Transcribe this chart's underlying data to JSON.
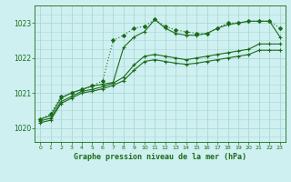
{
  "title": "Graphe pression niveau de la mer (hPa)",
  "bg_color": "#cff0f0",
  "grid_color": "#aad8d8",
  "line_color": "#1a6b1a",
  "xlim": [
    -0.5,
    23.5
  ],
  "ylim": [
    1019.6,
    1023.5
  ],
  "xticks": [
    0,
    1,
    2,
    3,
    4,
    5,
    6,
    7,
    8,
    9,
    10,
    11,
    12,
    13,
    14,
    15,
    16,
    17,
    18,
    19,
    20,
    21,
    22,
    23
  ],
  "yticks": [
    1020,
    1021,
    1022,
    1023
  ],
  "lines": [
    {
      "x": [
        0,
        1,
        2,
        3,
        4,
        5,
        6,
        7,
        8,
        9,
        10,
        11,
        12,
        13,
        14,
        15,
        16,
        17,
        18,
        19,
        20,
        21,
        22,
        23
      ],
      "y": [
        1020.25,
        1020.4,
        1020.9,
        1021.0,
        1021.1,
        1021.2,
        1021.35,
        1022.5,
        1022.65,
        1022.85,
        1022.9,
        1023.1,
        1022.9,
        1022.8,
        1022.75,
        1022.7,
        1022.7,
        1022.85,
        1023.0,
        1023.0,
        1023.05,
        1023.05,
        1023.05,
        1022.85
      ],
      "style": "dotted",
      "marker": "D",
      "markersize": 2.0,
      "linewidth": 0.8
    },
    {
      "x": [
        0,
        1,
        2,
        3,
        4,
        5,
        6,
        7,
        8,
        9,
        10,
        11,
        12,
        13,
        14,
        15,
        16,
        17,
        18,
        19,
        20,
        21,
        22,
        23
      ],
      "y": [
        1020.25,
        1020.35,
        1020.85,
        1021.0,
        1021.1,
        1021.2,
        1021.25,
        1021.3,
        1022.3,
        1022.6,
        1022.75,
        1023.1,
        1022.85,
        1022.7,
        1022.65,
        1022.65,
        1022.7,
        1022.85,
        1022.95,
        1023.0,
        1023.05,
        1023.05,
        1023.05,
        1022.6
      ],
      "style": "solid",
      "marker": "+",
      "markersize": 3.5,
      "linewidth": 0.8
    },
    {
      "x": [
        0,
        1,
        2,
        3,
        4,
        5,
        6,
        7,
        8,
        9,
        10,
        11,
        12,
        13,
        14,
        15,
        16,
        17,
        18,
        19,
        20,
        21,
        22,
        23
      ],
      "y": [
        1020.2,
        1020.28,
        1020.75,
        1020.9,
        1021.05,
        1021.1,
        1021.18,
        1021.28,
        1021.45,
        1021.8,
        1022.05,
        1022.1,
        1022.05,
        1022.0,
        1021.95,
        1022.0,
        1022.05,
        1022.1,
        1022.15,
        1022.2,
        1022.25,
        1022.4,
        1022.4,
        1022.4
      ],
      "style": "solid",
      "marker": "+",
      "markersize": 3.5,
      "linewidth": 0.8
    },
    {
      "x": [
        0,
        1,
        2,
        3,
        4,
        5,
        6,
        7,
        8,
        9,
        10,
        11,
        12,
        13,
        14,
        15,
        16,
        17,
        18,
        19,
        20,
        21,
        22,
        23
      ],
      "y": [
        1020.15,
        1020.22,
        1020.7,
        1020.85,
        1021.0,
        1021.05,
        1021.12,
        1021.22,
        1021.35,
        1021.65,
        1021.9,
        1021.95,
        1021.9,
        1021.85,
        1021.82,
        1021.85,
        1021.9,
        1021.95,
        1022.0,
        1022.05,
        1022.1,
        1022.22,
        1022.22,
        1022.22
      ],
      "style": "solid",
      "marker": "+",
      "markersize": 3.5,
      "linewidth": 0.8
    }
  ]
}
